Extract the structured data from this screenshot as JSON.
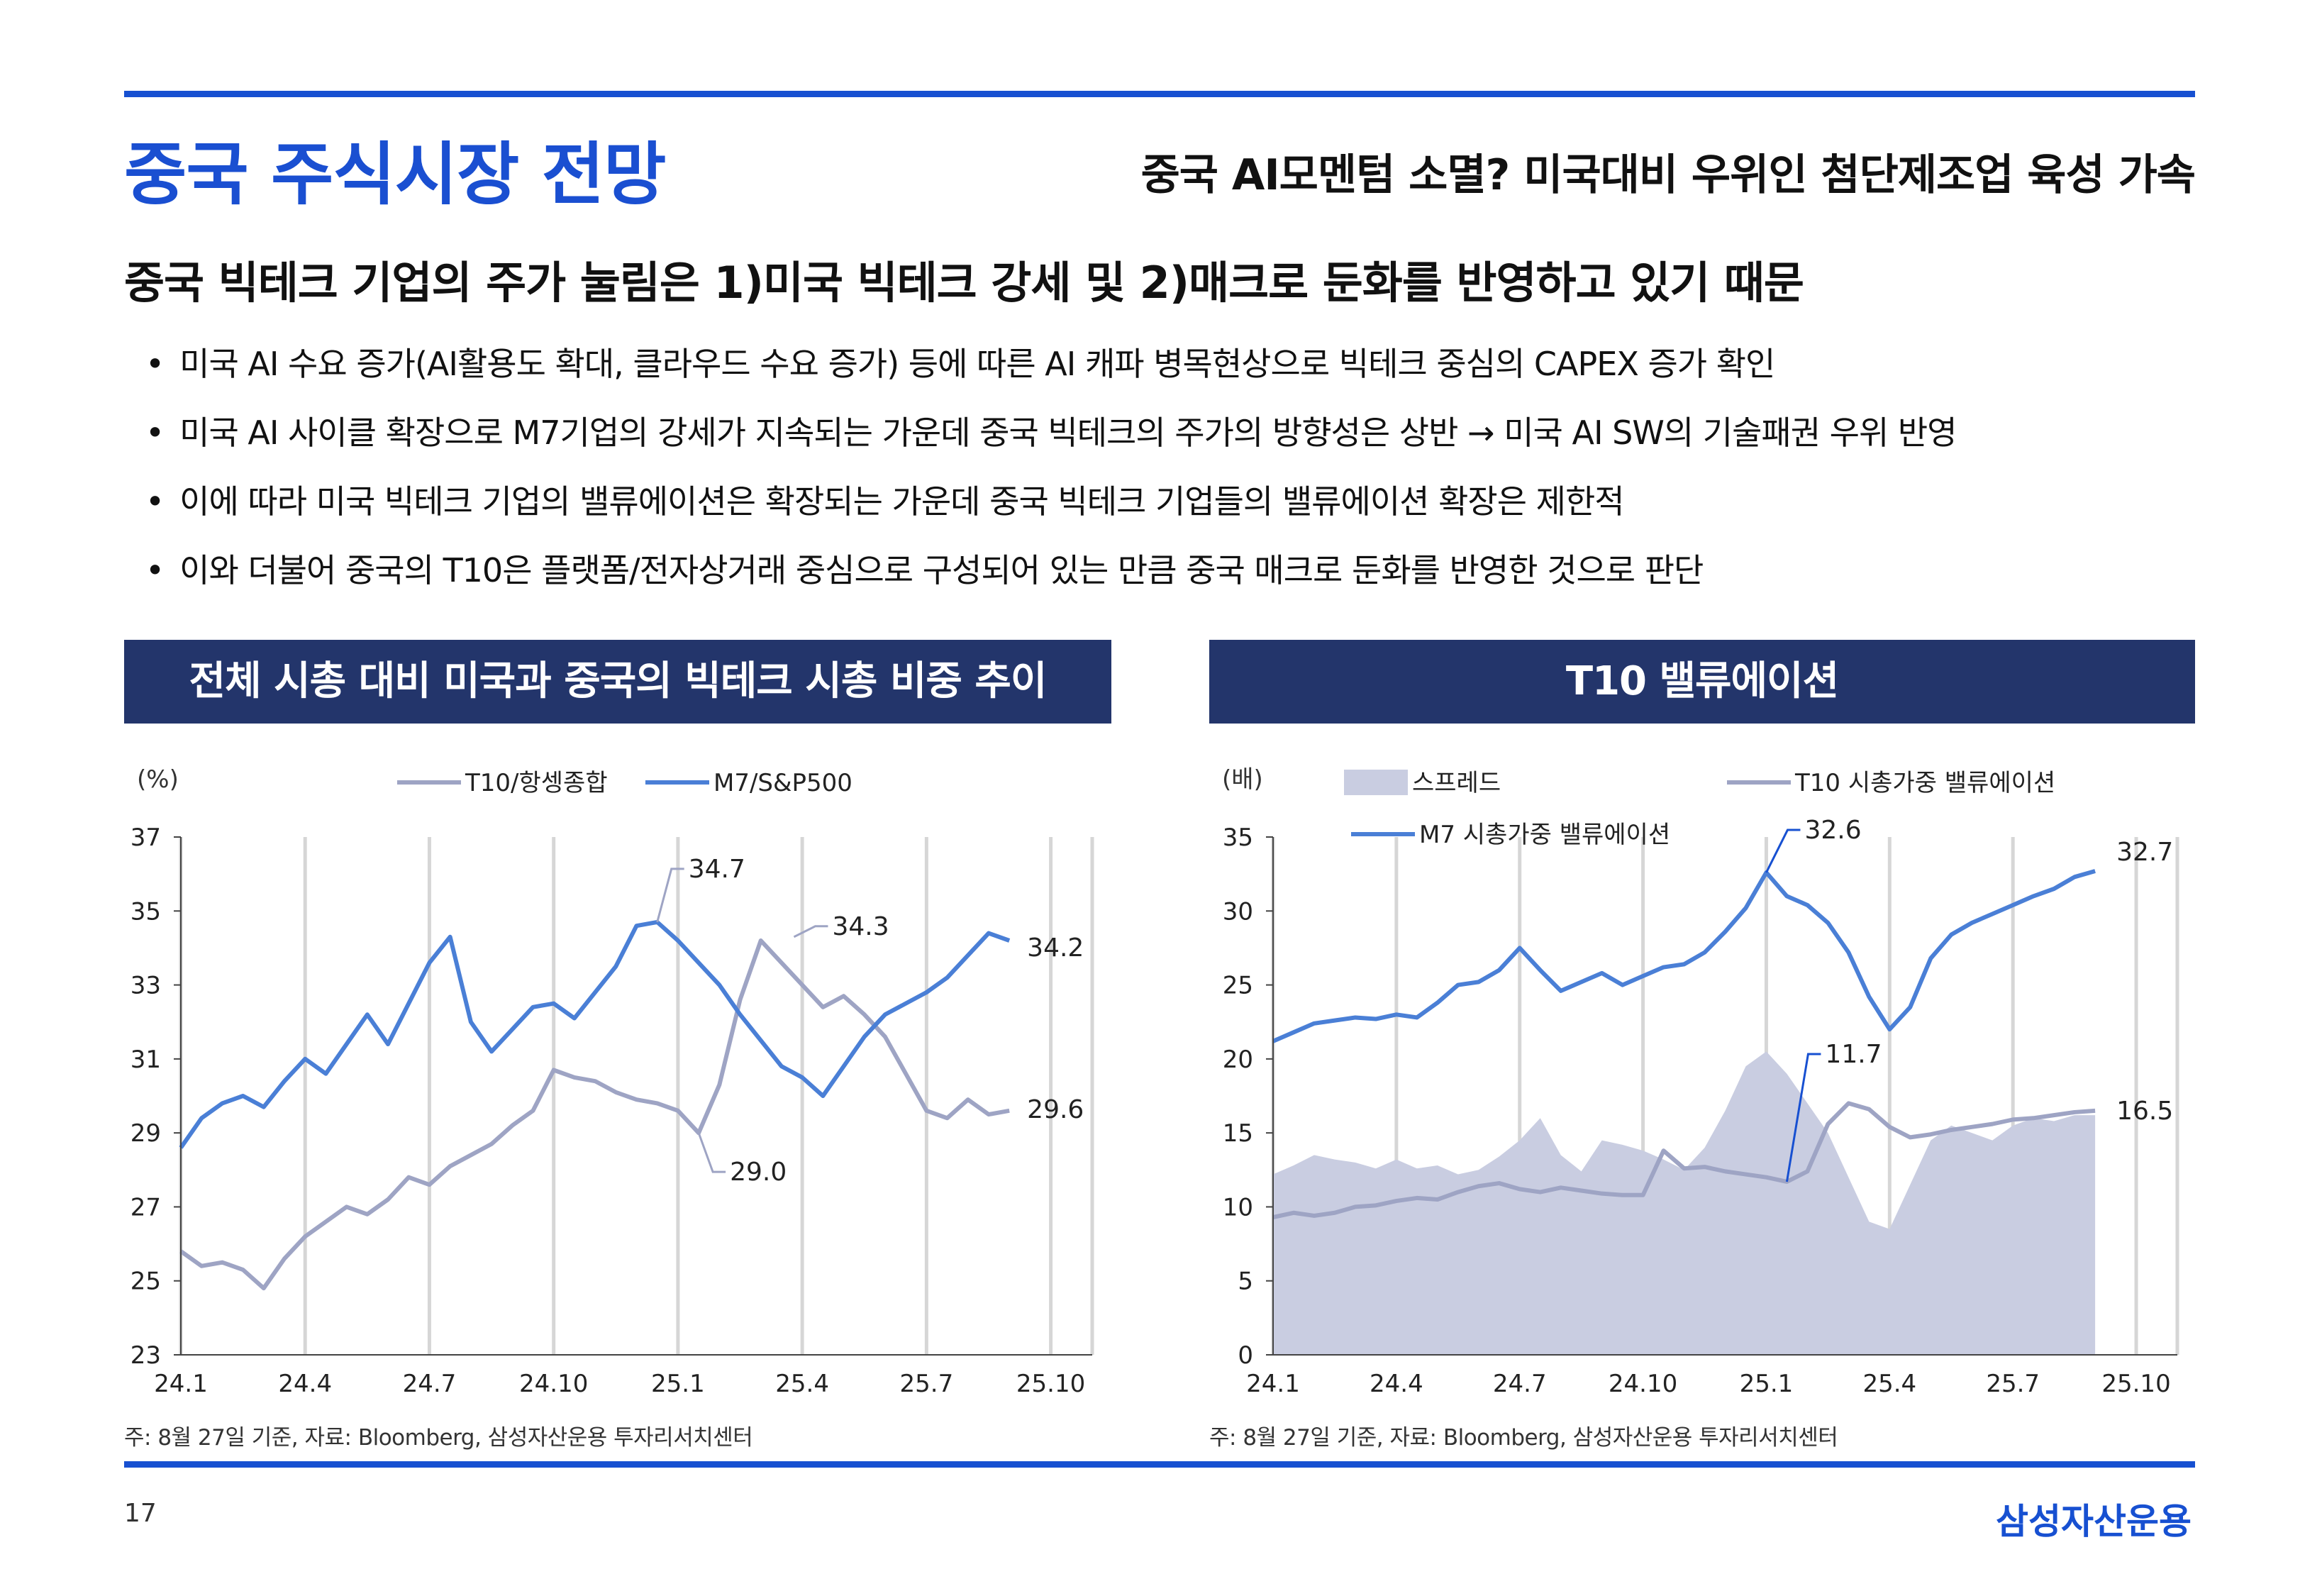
{
  "header": {
    "title": "중국 주식시장 전망",
    "subtitle": "중국 AI모멘텀 소멸? 미국대비 우위인 첨단제조업 육성 가속"
  },
  "headline": "중국 빅테크 기업의 주가 눌림은 1)미국 빅테크 강세 및 2)매크로 둔화를 반영하고 있기 때문",
  "bullets": [
    "미국 AI 수요 증가(AI활용도 확대, 클라우드 수요 증가) 등에 따른 AI 캐파 병목현상으로 빅테크 중심의 CAPEX 증가 확인",
    "미국 AI 사이클 확장으로 M7기업의 강세가 지속되는 가운데 중국 빅테크의 주가의 방향성은 상반 → 미국 AI SW의 기술패권 우위 반영",
    "이에 따라 미국 빅테크 기업의 밸류에이션은 확장되는 가운데 중국 빅테크 기업들의 밸류에이션 확장은 제한적",
    "이와 더불어 중국의 T10은 플랫폼/전자상거래 중심으로 구성되어 있는 만큼 중국 매크로 둔화를 반영한 것으로 판단"
  ],
  "left_panel": {
    "header": "전체 시총 대비 미국과 중국의 빅테크 시총 비중 추이",
    "note": "주: 8월 27일 기준, 자료: Bloomberg, 삼성자산운용 투자리서치센터"
  },
  "right_panel": {
    "header": "T10 밸류에이션",
    "note": "주: 8월 27일 기준, 자료: Bloomberg, 삼성자산운용 투자리서치센터"
  },
  "footer": {
    "page_number": "17",
    "brand": "삼성자산운용"
  },
  "colors": {
    "accent": "#1750d1",
    "header_bg": "#23356b",
    "m7_line": "#4a7fd6",
    "t10_line": "#9ea4c4",
    "spread_area": "#c9cde1",
    "grid": "#d6d6d6"
  },
  "chart_data": [
    {
      "type": "line",
      "unit_label": "(%)",
      "x_ticks": [
        "24.1",
        "24.4",
        "24.7",
        "24.10",
        "25.1",
        "25.4",
        "25.7",
        "25.10"
      ],
      "xlim": [
        0,
        22
      ],
      "ylim": [
        23,
        37
      ],
      "y_ticks": [
        23,
        25,
        27,
        29,
        31,
        33,
        35,
        37
      ],
      "legend": [
        "T10/항셍종합",
        "M7/S&P500"
      ],
      "series": [
        {
          "name": "T10/항셍종합",
          "color": "#9ea4c4",
          "x": [
            0,
            0.5,
            1,
            1.5,
            2,
            2.5,
            3,
            3.5,
            4,
            4.5,
            5,
            5.5,
            6,
            6.5,
            7,
            7.5,
            8,
            8.5,
            9,
            9.5,
            10,
            10.5,
            11,
            11.5,
            12,
            12.5,
            13,
            13.5,
            14,
            14.5,
            15,
            15.5,
            16,
            16.5,
            17,
            17.5,
            18,
            18.5,
            19,
            19.5,
            20
          ],
          "values": [
            25.8,
            25.4,
            25.5,
            25.3,
            24.8,
            25.6,
            26.2,
            26.6,
            27.0,
            26.8,
            27.2,
            27.8,
            27.6,
            28.1,
            28.4,
            28.7,
            29.2,
            29.6,
            30.7,
            30.5,
            30.4,
            30.1,
            29.9,
            29.8,
            29.6,
            29.0,
            30.3,
            32.6,
            34.2,
            33.6,
            33.0,
            32.4,
            32.7,
            32.2,
            31.6,
            30.6,
            29.6,
            29.4,
            29.9,
            29.5,
            29.6
          ]
        },
        {
          "name": "M7/S&P500",
          "color": "#4a7fd6",
          "x": [
            0,
            0.5,
            1,
            1.5,
            2,
            2.5,
            3,
            3.5,
            4,
            4.5,
            5,
            5.5,
            6,
            6.5,
            7,
            7.5,
            8,
            8.5,
            9,
            9.5,
            10,
            10.5,
            11,
            11.5,
            12,
            12.5,
            13,
            13.5,
            14,
            14.5,
            15,
            15.5,
            16,
            16.5,
            17,
            17.5,
            18,
            18.5,
            19,
            19.5,
            20
          ],
          "values": [
            28.6,
            29.4,
            29.8,
            30.0,
            29.7,
            30.4,
            31.0,
            30.6,
            31.4,
            32.2,
            31.4,
            32.5,
            33.6,
            34.3,
            32.0,
            31.2,
            31.8,
            32.4,
            32.5,
            32.1,
            32.8,
            33.5,
            34.6,
            34.7,
            34.2,
            33.6,
            33.0,
            32.2,
            31.5,
            30.8,
            30.5,
            30.0,
            30.8,
            31.6,
            32.2,
            32.5,
            32.8,
            33.2,
            33.8,
            34.4,
            34.2
          ]
        }
      ],
      "annotations": [
        {
          "label": "34.7",
          "x": 11.5,
          "y": 34.7
        },
        {
          "label": "34.3",
          "x": 14.8,
          "y": 34.3
        },
        {
          "label": "29.0",
          "x": 12.5,
          "y": 29.0
        },
        {
          "label": "34.2",
          "x": 20,
          "y": 34.2
        },
        {
          "label": "29.6",
          "x": 20,
          "y": 29.6
        }
      ]
    },
    {
      "type": "area+line",
      "unit_label": "(배)",
      "x_ticks": [
        "24.1",
        "24.4",
        "24.7",
        "24.10",
        "25.1",
        "25.4",
        "25.7",
        "25.10"
      ],
      "xlim": [
        0,
        22
      ],
      "ylim": [
        0,
        35
      ],
      "y_ticks": [
        0,
        5,
        10,
        15,
        20,
        25,
        30,
        35
      ],
      "legend": [
        "스프레드",
        "T10 시총가중 밸류에이션",
        "M7 시총가중 밸류에이션"
      ],
      "series": [
        {
          "name": "스프레드",
          "kind": "area",
          "color": "#c9cde1",
          "x": [
            0,
            0.5,
            1,
            1.5,
            2,
            2.5,
            3,
            3.5,
            4,
            4.5,
            5,
            5.5,
            6,
            6.5,
            7,
            7.5,
            8,
            8.5,
            9,
            9.5,
            10,
            10.5,
            11,
            11.5,
            12,
            12.5,
            13,
            13.5,
            14,
            14.5,
            15,
            15.5,
            16,
            16.5,
            17,
            17.5,
            18,
            18.5,
            19,
            19.5,
            20
          ],
          "values": [
            12.2,
            12.8,
            13.5,
            13.2,
            13.0,
            12.6,
            13.2,
            12.6,
            12.8,
            12.2,
            12.5,
            13.4,
            14.5,
            16.0,
            13.5,
            12.4,
            14.5,
            14.2,
            13.8,
            13.2,
            12.5,
            14.0,
            16.5,
            19.5,
            20.5,
            19.0,
            17.0,
            15.0,
            12.0,
            9.0,
            8.5,
            11.5,
            14.5,
            15.5,
            15.0,
            14.5,
            15.5,
            16.0,
            15.8,
            16.2,
            16.2
          ]
        },
        {
          "name": "T10 시총가중 밸류에이션",
          "kind": "line",
          "color": "#9ea4c4",
          "x": [
            0,
            0.5,
            1,
            1.5,
            2,
            2.5,
            3,
            3.5,
            4,
            4.5,
            5,
            5.5,
            6,
            6.5,
            7,
            7.5,
            8,
            8.5,
            9,
            9.5,
            10,
            10.5,
            11,
            11.5,
            12,
            12.5,
            13,
            13.5,
            14,
            14.5,
            15,
            15.5,
            16,
            16.5,
            17,
            17.5,
            18,
            18.5,
            19,
            19.5,
            20
          ],
          "values": [
            9.3,
            9.6,
            9.4,
            9.6,
            10.0,
            10.1,
            10.4,
            10.6,
            10.5,
            11.0,
            11.4,
            11.6,
            11.2,
            11.0,
            11.3,
            11.1,
            10.9,
            10.8,
            10.8,
            13.8,
            12.6,
            12.7,
            12.4,
            12.2,
            12.0,
            11.7,
            12.4,
            15.6,
            17.0,
            16.6,
            15.4,
            14.7,
            14.9,
            15.2,
            15.4,
            15.6,
            15.9,
            16.0,
            16.2,
            16.4,
            16.5
          ]
        },
        {
          "name": "M7 시총가중 밸류에이션",
          "kind": "line",
          "color": "#4a7fd6",
          "x": [
            0,
            0.5,
            1,
            1.5,
            2,
            2.5,
            3,
            3.5,
            4,
            4.5,
            5,
            5.5,
            6,
            6.5,
            7,
            7.5,
            8,
            8.5,
            9,
            9.5,
            10,
            10.5,
            11,
            11.5,
            12,
            12.5,
            13,
            13.5,
            14,
            14.5,
            15,
            15.5,
            16,
            16.5,
            17,
            17.5,
            18,
            18.5,
            19,
            19.5,
            20
          ],
          "values": [
            21.2,
            21.8,
            22.4,
            22.6,
            22.8,
            22.7,
            23.0,
            22.8,
            23.8,
            25.0,
            25.2,
            26.0,
            27.5,
            26.0,
            24.6,
            25.2,
            25.8,
            25.0,
            25.6,
            26.2,
            26.4,
            27.2,
            28.6,
            30.2,
            32.6,
            31.0,
            30.4,
            29.2,
            27.2,
            24.2,
            22.0,
            23.5,
            26.8,
            28.4,
            29.2,
            29.8,
            30.4,
            31.0,
            31.5,
            32.3,
            32.7
          ]
        }
      ],
      "annotations": [
        {
          "label": "32.6",
          "x": 12,
          "y": 32.6
        },
        {
          "label": "11.7",
          "x": 12.5,
          "y": 11.7
        },
        {
          "label": "32.7",
          "x": 20,
          "y": 32.7
        },
        {
          "label": "16.5",
          "x": 20,
          "y": 16.5
        }
      ]
    }
  ]
}
